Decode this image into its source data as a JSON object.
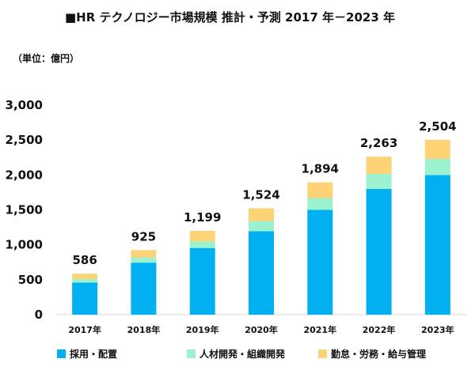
{
  "chart_data": {
    "type": "bar",
    "stacked": true,
    "title": "■HR テクノロジー市場規模 推計・予測 2017 年－2023 年",
    "unit_label": "（単位：億円）",
    "categories": [
      "2017年",
      "2018年",
      "2019年",
      "2020年",
      "2021年",
      "2022年",
      "2023年"
    ],
    "ylim": [
      0,
      3000
    ],
    "yticks": [
      0,
      500,
      1000,
      1500,
      2000,
      2500,
      3000
    ],
    "ytick_labels": [
      "0",
      "500",
      "1,000",
      "1,500",
      "2,000",
      "2,500",
      "3,000"
    ],
    "series": [
      {
        "name": "採用・配置",
        "color": "#00b0f0",
        "values": [
          460,
          745,
          955,
          1195,
          1500,
          1800,
          2000
        ]
      },
      {
        "name": "人材開発・組織開発",
        "color": "#9cf2cf",
        "values": [
          50,
          75,
          95,
          145,
          170,
          215,
          230
        ]
      },
      {
        "name": "勤怠・労務・給与管理",
        "color": "#fdd376",
        "values": [
          76,
          105,
          149,
          184,
          224,
          248,
          274
        ]
      }
    ],
    "totals": [
      586,
      925,
      1199,
      1524,
      1894,
      2263,
      2504
    ],
    "total_labels": [
      "586",
      "925",
      "1,199",
      "1,524",
      "1,894",
      "2,263",
      "2,504"
    ],
    "grid": false,
    "legend_position": "bottom"
  }
}
